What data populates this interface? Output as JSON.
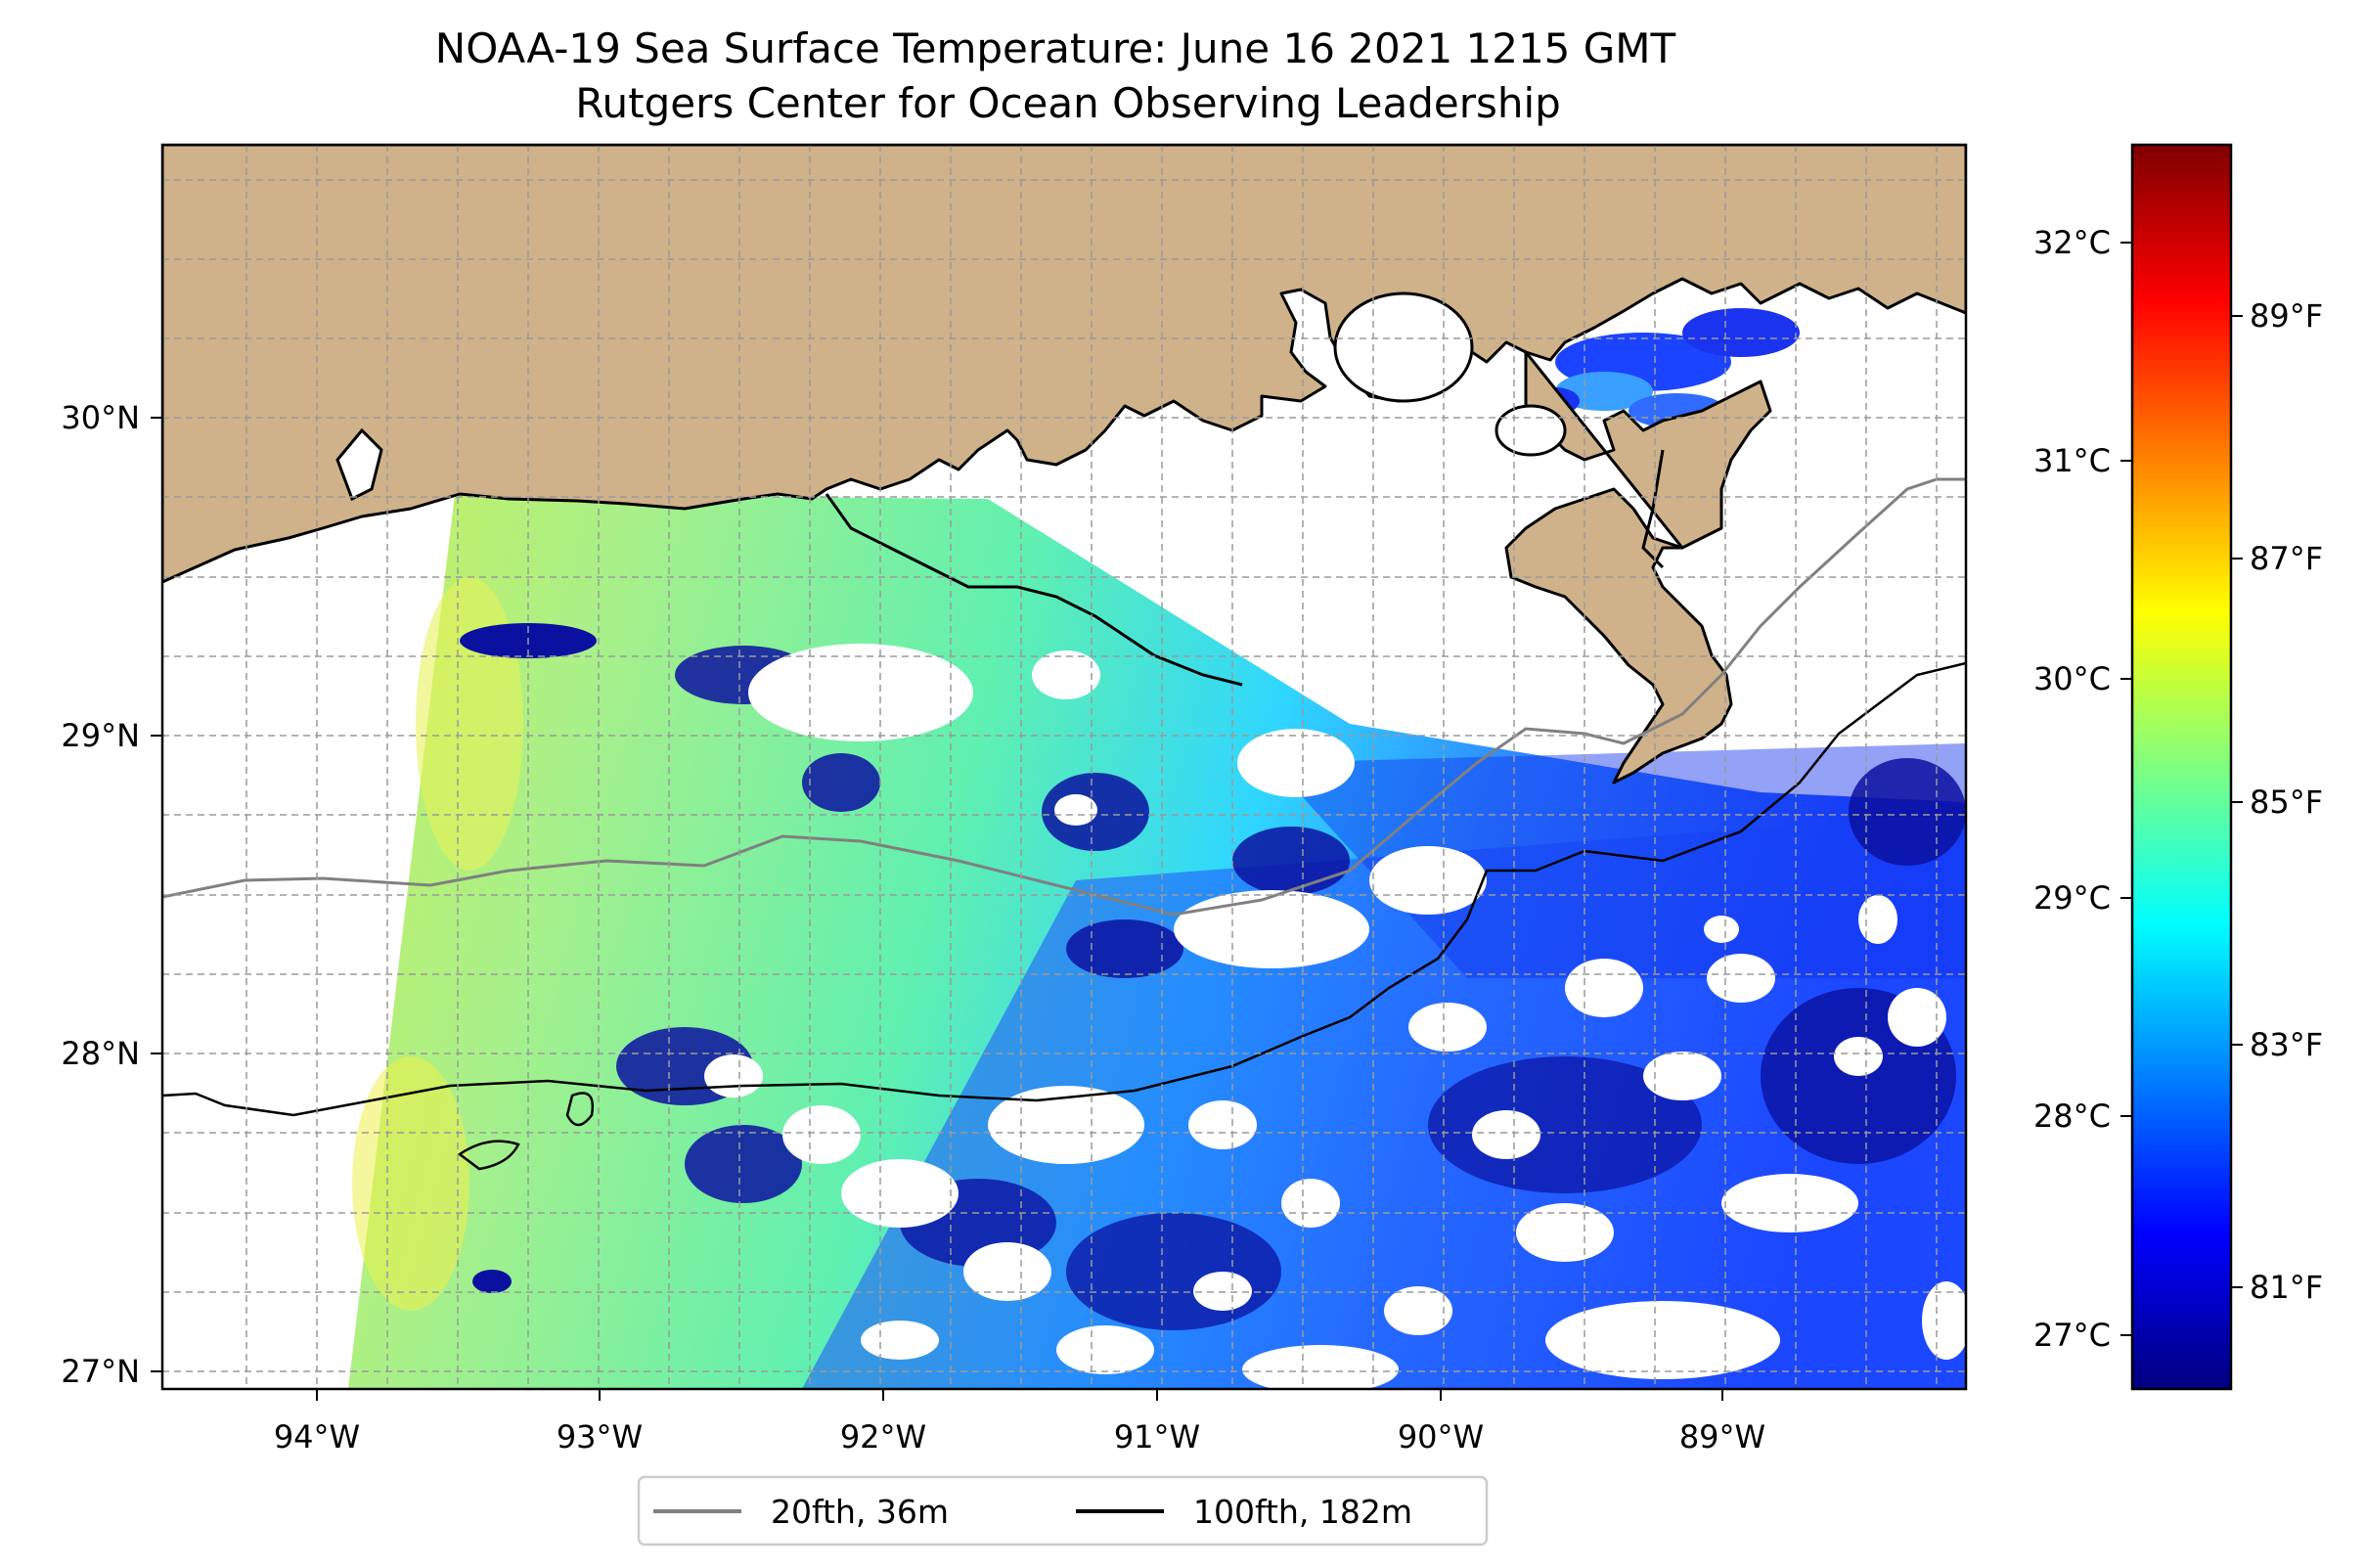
{
  "title": {
    "line1": "NOAA-19 Sea Surface Temperature: June 16 2021 1215 GMT",
    "line2": "Rutgers Center for Ocean Observing Leadership"
  },
  "map": {
    "longitude_ticks": [
      "94°W",
      "93°W",
      "92°W",
      "91°W",
      "90°W",
      "89°W"
    ],
    "latitude_ticks": [
      "27°N",
      "28°N",
      "29°N",
      "30°N"
    ],
    "longitude_range_deg_east": [
      -94.55,
      -88.2
    ],
    "latitude_range_deg_north": [
      26.93,
      30.85
    ],
    "land_color": "#cfb18a",
    "cloud_nodata_color": "#ffffff",
    "gridlines": "dashed-grey",
    "colormap": "jet"
  },
  "colorbar": {
    "celsius_ticks": [
      "27°C",
      "28°C",
      "29°C",
      "30°C",
      "31°C",
      "32°C"
    ],
    "fahrenheit_ticks": [
      "81°F",
      "83°F",
      "85°F",
      "87°F",
      "89°F"
    ],
    "range_celsius": [
      26.8,
      32.5
    ],
    "colormap_stops": [
      "#00007f",
      "#0000ff",
      "#007fff",
      "#00ffff",
      "#7fff7f",
      "#ffff00",
      "#ff7f00",
      "#ff0000",
      "#7f0000"
    ]
  },
  "legend": {
    "placement": "below-map",
    "items": [
      {
        "label": "20fth, 36m",
        "color": "#808080"
      },
      {
        "label": "100fth, 182m",
        "color": "#000000"
      }
    ]
  }
}
